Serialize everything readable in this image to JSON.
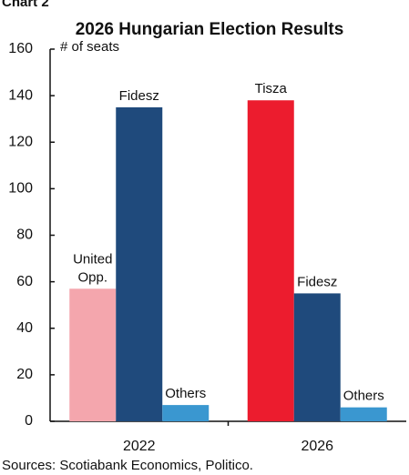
{
  "header": "Chart 2",
  "chart_data": {
    "type": "bar",
    "title": "2026 Hungarian Election Results",
    "y_label": "# of seats",
    "categories": [
      "2022",
      "2026"
    ],
    "groups": [
      {
        "bars": [
          {
            "label": [
              "United",
              "Opp."
            ],
            "value": 57,
            "color": "#f4a6ad"
          },
          {
            "label": [
              "Fidesz"
            ],
            "value": 135,
            "color": "#1f4a7c"
          },
          {
            "label": [
              "Others"
            ],
            "value": 7,
            "color": "#3a97d0"
          }
        ]
      },
      {
        "bars": [
          {
            "label": [
              "Tisza"
            ],
            "value": 138,
            "color": "#ec1c2e"
          },
          {
            "label": [
              "Fidesz"
            ],
            "value": 55,
            "color": "#1f4a7c"
          },
          {
            "label": [
              "Others"
            ],
            "value": 6,
            "color": "#3a97d0"
          }
        ]
      }
    ],
    "ylim": [
      0,
      160
    ],
    "yticks": [
      0,
      20,
      40,
      60,
      80,
      100,
      120,
      140,
      160
    ],
    "source": "Sources: Scotiabank Economics, Politico."
  }
}
